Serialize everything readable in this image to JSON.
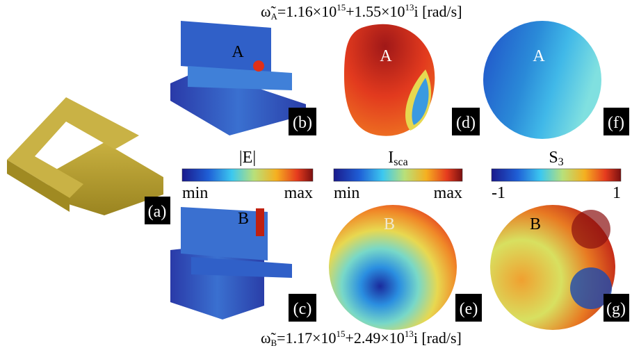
{
  "equation_top": {
    "symbol": "ω̃",
    "sub": "A",
    "part1": "=1.16×10",
    "sup1": "15",
    "part2": "+1.55×10",
    "sup2": "13",
    "part3": "i [rad/s]"
  },
  "equation_bottom": {
    "symbol": "ω̃",
    "sub": "B",
    "part1": "=1.17×10",
    "sup1": "15",
    "part2": "+2.49×10",
    "sup2": "13",
    "part3": "i [rad/s]"
  },
  "panels": {
    "a": "(a)",
    "b": "(b)",
    "c": "(c)",
    "d": "(d)",
    "e": "(e)",
    "f": "(f)",
    "g": "(g)"
  },
  "mode_labels": {
    "b": "A",
    "d": "A",
    "f": "A",
    "c": "B",
    "e": "B",
    "g": "B"
  },
  "colorbars": [
    {
      "title": "|E|",
      "min": "min",
      "max": "max"
    },
    {
      "title": "I",
      "title_sub": "sca",
      "min": "min",
      "max": "max"
    },
    {
      "title": "S",
      "title_sub": "3",
      "min": "-1",
      "max": "1"
    }
  ]
}
